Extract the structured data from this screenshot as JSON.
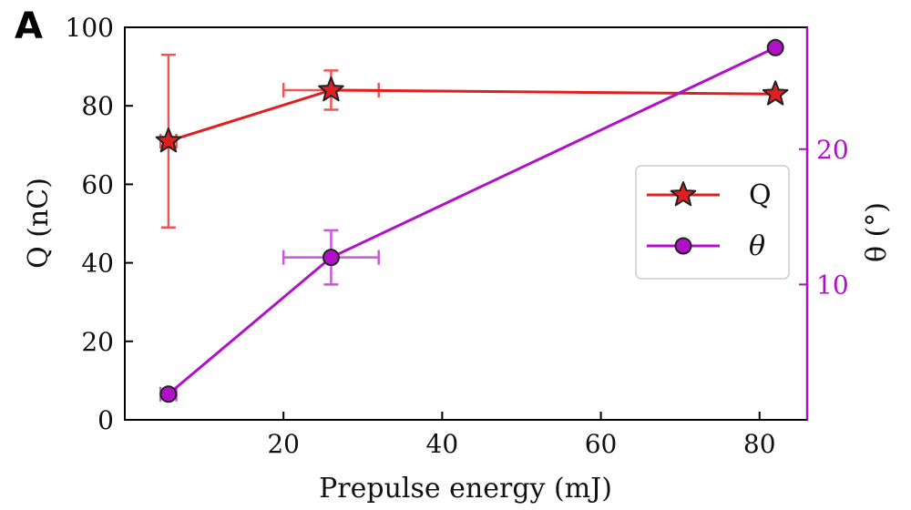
{
  "panel_label": "A",
  "colors": {
    "q_series": "#e02020",
    "theta_series": "#b010c8",
    "q_errorbar": "#ee5555",
    "theta_errorbar": "#cc55dd",
    "axis": "#000000",
    "right_axis": "#b010c8",
    "marker_edge": "#222222"
  },
  "chart_data": {
    "type": "line",
    "xlabel": "Prepulse energy (mJ)",
    "ylabel": "Q (nC)",
    "ylabel_right": "θ (°)",
    "xlim": [
      0,
      86
    ],
    "ylim": [
      0,
      100
    ],
    "ylim_right": [
      0,
      29
    ],
    "xticks": [
      20,
      40,
      60,
      80
    ],
    "yticks": [
      0,
      20,
      40,
      60,
      80,
      100
    ],
    "yticks_right": [
      10,
      20
    ],
    "grid": false,
    "legend_position": "center-right",
    "series": [
      {
        "name": "Q",
        "axis": "left",
        "marker": "star",
        "x": [
          5.5,
          26,
          82
        ],
        "y": [
          71,
          84,
          83
        ],
        "yerr": [
          22,
          5,
          0
        ],
        "xerr": [
          1,
          6,
          0
        ]
      },
      {
        "name": "θ",
        "axis": "right",
        "marker": "circle",
        "x": [
          5.5,
          26,
          82
        ],
        "y": [
          1.9,
          12,
          27.5
        ],
        "yerr": [
          0,
          2,
          0
        ],
        "xerr": [
          1,
          6,
          0
        ]
      }
    ]
  }
}
